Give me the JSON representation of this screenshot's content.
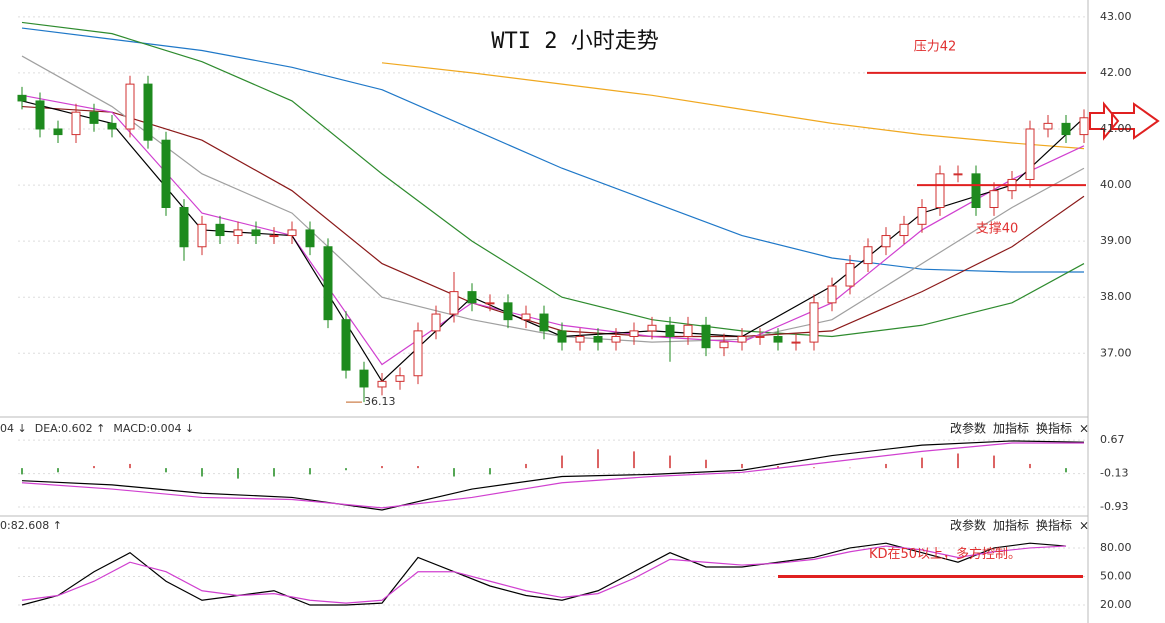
{
  "chart_data": [
    {
      "type": "candlestick",
      "title": "WTI 2 小时走势",
      "candles": [
        [
          41.6,
          41.75,
          41.35,
          41.5
        ],
        [
          41.5,
          41.65,
          40.85,
          41.0
        ],
        [
          41.0,
          41.15,
          40.75,
          40.9
        ],
        [
          40.9,
          41.45,
          40.75,
          41.3
        ],
        [
          41.3,
          41.45,
          40.95,
          41.1
        ],
        [
          41.1,
          41.25,
          40.85,
          41.0
        ],
        [
          41.0,
          41.95,
          40.85,
          41.8
        ],
        [
          41.8,
          41.95,
          40.65,
          40.8
        ],
        [
          40.8,
          40.95,
          39.45,
          39.6
        ],
        [
          39.6,
          39.75,
          38.65,
          38.9
        ],
        [
          38.9,
          39.45,
          38.75,
          39.3
        ],
        [
          39.3,
          39.45,
          38.95,
          39.1
        ],
        [
          39.1,
          39.35,
          38.95,
          39.2
        ],
        [
          39.2,
          39.35,
          38.95,
          39.1
        ],
        [
          39.1,
          39.25,
          38.95,
          39.1
        ],
        [
          39.1,
          39.35,
          38.95,
          39.2
        ],
        [
          39.2,
          39.35,
          38.75,
          38.9
        ],
        [
          38.9,
          39.05,
          37.45,
          37.6
        ],
        [
          37.6,
          37.75,
          36.55,
          36.7
        ],
        [
          36.7,
          36.85,
          36.13,
          36.4
        ],
        [
          36.4,
          36.65,
          36.25,
          36.5
        ],
        [
          36.5,
          36.75,
          36.35,
          36.6
        ],
        [
          36.6,
          37.55,
          36.45,
          37.4
        ],
        [
          37.4,
          37.85,
          37.25,
          37.7
        ],
        [
          37.7,
          38.45,
          37.55,
          38.1
        ],
        [
          38.1,
          38.25,
          37.75,
          37.9
        ],
        [
          37.9,
          38.05,
          37.75,
          37.9
        ],
        [
          37.9,
          38.05,
          37.45,
          37.6
        ],
        [
          37.6,
          37.85,
          37.45,
          37.7
        ],
        [
          37.7,
          37.85,
          37.25,
          37.4
        ],
        [
          37.4,
          37.55,
          37.05,
          37.2
        ],
        [
          37.2,
          37.45,
          37.05,
          37.3
        ],
        [
          37.3,
          37.45,
          37.05,
          37.2
        ],
        [
          37.2,
          37.45,
          37.05,
          37.3
        ],
        [
          37.3,
          37.55,
          37.15,
          37.4
        ],
        [
          37.4,
          37.65,
          37.25,
          37.5
        ],
        [
          37.5,
          37.65,
          36.85,
          37.3
        ],
        [
          37.3,
          37.65,
          37.15,
          37.5
        ],
        [
          37.5,
          37.65,
          36.95,
          37.1
        ],
        [
          37.1,
          37.35,
          36.95,
          37.2
        ],
        [
          37.2,
          37.45,
          37.05,
          37.3
        ],
        [
          37.3,
          37.45,
          37.15,
          37.3
        ],
        [
          37.3,
          37.45,
          37.05,
          37.2
        ],
        [
          37.2,
          37.35,
          37.05,
          37.2
        ],
        [
          37.2,
          38.05,
          37.05,
          37.9
        ],
        [
          37.9,
          38.35,
          37.75,
          38.2
        ],
        [
          38.2,
          38.75,
          38.05,
          38.6
        ],
        [
          38.6,
          39.05,
          38.45,
          38.9
        ],
        [
          38.9,
          39.25,
          38.75,
          39.1
        ],
        [
          39.1,
          39.45,
          38.95,
          39.3
        ],
        [
          39.3,
          39.75,
          39.15,
          39.6
        ],
        [
          39.6,
          40.35,
          39.45,
          40.2
        ],
        [
          40.2,
          40.35,
          40.05,
          40.2
        ],
        [
          40.2,
          40.35,
          39.45,
          39.6
        ],
        [
          39.6,
          40.05,
          39.45,
          39.9
        ],
        [
          39.9,
          40.25,
          39.75,
          40.1
        ],
        [
          40.1,
          41.15,
          39.95,
          41.0
        ],
        [
          41.0,
          41.25,
          40.85,
          41.1
        ],
        [
          41.1,
          41.25,
          40.75,
          40.9
        ],
        [
          40.9,
          41.35,
          40.75,
          41.2
        ]
      ],
      "up_color": "#d03030",
      "down_color": "#1e8a1e",
      "series": [
        {
          "color": "#1f78c8",
          "x": [
            0,
            5,
            10,
            15,
            20,
            25,
            30,
            35,
            40,
            45,
            50,
            55,
            59
          ],
          "values": [
            42.8,
            42.6,
            42.4,
            42.1,
            41.7,
            41.0,
            40.3,
            39.7,
            39.1,
            38.7,
            38.5,
            38.45,
            38.45
          ]
        },
        {
          "color": "#f0a820",
          "x": [
            0,
            5,
            10,
            15,
            20,
            25,
            30,
            35,
            40,
            45,
            50,
            55,
            59
          ],
          "values": [
            null,
            null,
            null,
            null,
            42.18,
            42.0,
            41.8,
            41.6,
            41.35,
            41.1,
            40.9,
            40.75,
            40.65
          ]
        },
        {
          "color": "#2e8b2e",
          "x": [
            0,
            5,
            10,
            15,
            20,
            25,
            30,
            35,
            40,
            45,
            50,
            55,
            59
          ],
          "values": [
            42.9,
            42.7,
            42.2,
            41.5,
            40.2,
            39.0,
            38.0,
            37.6,
            37.4,
            37.3,
            37.5,
            37.9,
            38.6
          ]
        },
        {
          "color": "#8b1a1a",
          "x": [
            0,
            5,
            10,
            15,
            20,
            25,
            30,
            35,
            40,
            45,
            50,
            55,
            59
          ],
          "values": [
            41.4,
            41.3,
            40.8,
            39.9,
            38.6,
            37.9,
            37.4,
            37.3,
            37.3,
            37.4,
            38.1,
            38.9,
            39.8
          ]
        },
        {
          "color": "#a0a0a0",
          "x": [
            0,
            5,
            10,
            15,
            20,
            25,
            30,
            35,
            40,
            45,
            50,
            55,
            59
          ],
          "values": [
            42.3,
            41.4,
            40.2,
            39.5,
            38.0,
            37.6,
            37.3,
            37.2,
            37.25,
            37.6,
            38.6,
            39.6,
            40.3
          ]
        },
        {
          "color": "#d040d0",
          "x": [
            0,
            5,
            10,
            15,
            20,
            25,
            30,
            35,
            40,
            45,
            50,
            55,
            59
          ],
          "values": [
            41.6,
            41.3,
            39.5,
            39.1,
            36.8,
            37.9,
            37.5,
            37.3,
            37.2,
            37.9,
            39.2,
            40.1,
            40.7
          ]
        },
        {
          "color": "#000000",
          "x": [
            0,
            5,
            10,
            15,
            20,
            25,
            30,
            35,
            40,
            45,
            50,
            55,
            59
          ],
          "values": [
            41.5,
            41.1,
            39.2,
            39.1,
            36.5,
            38.0,
            37.3,
            37.4,
            37.3,
            38.2,
            39.5,
            40.0,
            41.2
          ]
        }
      ],
      "levels": [
        {
          "label": "压力42",
          "value": 42
        },
        {
          "label": "支撑40",
          "value": 40
        }
      ],
      "low_label": {
        "label": "36.13",
        "value": 36.13
      },
      "ylim": [
        35.9,
        43.3
      ],
      "yticks": [
        {
          "value": 43,
          "label": "43.00"
        },
        {
          "value": 42,
          "label": "42.00"
        },
        {
          "value": 41,
          "label": "41.00"
        },
        {
          "value": 40,
          "label": "40.00"
        },
        {
          "value": 39,
          "label": "39.00"
        },
        {
          "value": 38,
          "label": "38.00"
        },
        {
          "value": 37,
          "label": "37.00"
        }
      ],
      "grid": true
    },
    {
      "type": "macd",
      "header": [
        {
          "text": "04 ↓",
          "color": "#000000"
        },
        {
          "text": "DEA:0.602 ↑",
          "color": "#c020c0"
        },
        {
          "text": "MACD:0.004 ↓",
          "color": "#666666"
        }
      ],
      "buttons": [
        "改参数",
        "加指标",
        "换指标",
        "×"
      ],
      "histogram": {
        "x": [
          0,
          2,
          4,
          6,
          8,
          10,
          12,
          14,
          16,
          18,
          20,
          22,
          24,
          26,
          28,
          30,
          32,
          34,
          36,
          38,
          40,
          42,
          44,
          46,
          48,
          50,
          52,
          54,
          56,
          58
        ],
        "values": [
          -0.15,
          -0.1,
          0.05,
          0.1,
          -0.1,
          -0.2,
          -0.25,
          -0.2,
          -0.15,
          -0.05,
          0.05,
          0.05,
          -0.2,
          -0.15,
          0.1,
          0.3,
          0.45,
          0.4,
          0.3,
          0.2,
          0.1,
          0.05,
          0.02,
          0.01,
          0.1,
          0.25,
          0.35,
          0.3,
          0.1,
          -0.1
        ],
        "up_color": "#d03030",
        "down_color": "#1e8a1e"
      },
      "series": [
        {
          "color": "#000000",
          "x": [
            0,
            5,
            10,
            15,
            20,
            25,
            30,
            35,
            40,
            45,
            50,
            55,
            59
          ],
          "values": [
            -0.3,
            -0.4,
            -0.6,
            -0.7,
            -1.0,
            -0.5,
            -0.2,
            -0.15,
            -0.05,
            0.3,
            0.55,
            0.65,
            0.62
          ]
        },
        {
          "color": "#d040d0",
          "x": [
            0,
            5,
            10,
            15,
            20,
            25,
            30,
            35,
            40,
            45,
            50,
            55,
            59
          ],
          "values": [
            -0.35,
            -0.5,
            -0.7,
            -0.75,
            -0.95,
            -0.7,
            -0.35,
            -0.2,
            -0.1,
            0.15,
            0.4,
            0.6,
            0.6
          ]
        }
      ],
      "ylim": [
        -1.12,
        1.15
      ],
      "yticks": [
        0.67,
        -0.13,
        -0.93
      ],
      "grid": true
    },
    {
      "type": "kd",
      "header": [
        {
          "text": "0:82.608 ↑",
          "color": "#c020c0"
        }
      ],
      "buttons": [
        "改参数",
        "加指标",
        "换指标",
        "×"
      ],
      "series": [
        {
          "color": "#000000",
          "x": [
            0,
            2,
            4,
            6,
            8,
            10,
            12,
            14,
            16,
            18,
            20,
            22,
            24,
            26,
            28,
            30,
            32,
            34,
            36,
            38,
            40,
            42,
            44,
            46,
            48,
            50,
            52,
            54,
            56,
            58
          ],
          "values": [
            20,
            30,
            55,
            75,
            45,
            25,
            30,
            35,
            20,
            20,
            22,
            70,
            55,
            40,
            30,
            25,
            35,
            55,
            75,
            60,
            60,
            65,
            70,
            80,
            85,
            75,
            65,
            80,
            85,
            82
          ]
        },
        {
          "color": "#d040d0",
          "x": [
            0,
            2,
            4,
            6,
            8,
            10,
            12,
            14,
            16,
            18,
            20,
            22,
            24,
            26,
            28,
            30,
            32,
            34,
            36,
            38,
            40,
            42,
            44,
            46,
            48,
            50,
            52,
            54,
            56,
            58
          ],
          "values": [
            25,
            30,
            45,
            65,
            55,
            35,
            30,
            32,
            25,
            22,
            25,
            55,
            55,
            45,
            35,
            28,
            32,
            48,
            68,
            65,
            62,
            64,
            68,
            76,
            82,
            78,
            70,
            76,
            80,
            82
          ]
        }
      ],
      "levels": [
        {
          "label": "KD在50以上，多方控制。",
          "value": 50
        }
      ],
      "ylim": [
        9.5,
        111.5
      ],
      "yticks": [
        {
          "value": 80,
          "label": "80.00"
        },
        {
          "value": 50,
          "label": "50.00"
        },
        {
          "value": 20,
          "label": "20.00"
        }
      ],
      "grid": true
    }
  ]
}
